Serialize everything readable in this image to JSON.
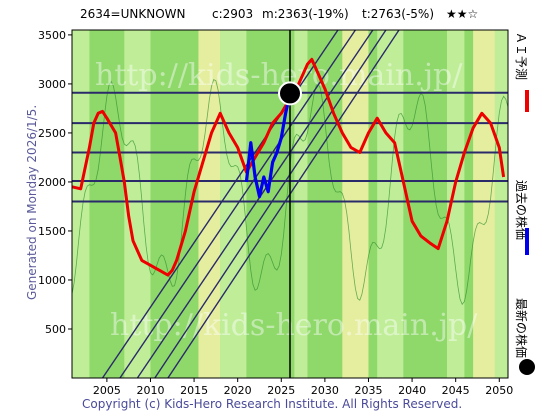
{
  "header": {
    "code": "2634=UNKNOWN",
    "current": "c:2903",
    "model": "m:2363(-19%)",
    "target": "t:2763(-5%)",
    "stars": "★★☆"
  },
  "side_label": "Generated on Monday 2026/1/5.",
  "footer": "Copyright (c) Kids-Hero Research Institute. All Rights Reserved.",
  "watermark": "http://kids-hero.main.jp/",
  "legend": {
    "ai": "ＡＩ予測",
    "past": "過去の株価",
    "latest": "最新の株価"
  },
  "colors": {
    "ai": "#ee0000",
    "past": "#0000ee",
    "latest": "#000000",
    "band_lines": "#2a2a6a",
    "bg_green": "#8fd86a",
    "bg_light": "#c9f2a0",
    "bg_yellow": "#f5f2a8"
  },
  "chart_data": {
    "type": "line",
    "xlim": [
      2001,
      2051
    ],
    "ylim": [
      0,
      3550
    ],
    "x_ticks": [
      2005,
      2010,
      2015,
      2020,
      2025,
      2030,
      2035,
      2040,
      2045,
      2050
    ],
    "y_ticks": [
      500,
      1000,
      1500,
      2000,
      2500,
      3000,
      3500
    ],
    "horizontal_levels": [
      1800,
      2010,
      2300,
      2600,
      2910
    ],
    "latest_point": {
      "x": 2026.0,
      "y": 2903
    },
    "current_date_x": 2026.0,
    "series": [
      {
        "name": "ＡＩ予測",
        "x": [
          2001,
          2002,
          2003,
          2003.5,
          2004,
          2004.5,
          2005,
          2006,
          2006.5,
          2007,
          2007.5,
          2008,
          2009,
          2010,
          2011,
          2012,
          2012.5,
          2013,
          2014,
          2015,
          2016,
          2017,
          2017.5,
          2018,
          2019,
          2020,
          2021,
          2022,
          2023,
          2024,
          2025,
          2026,
          2027,
          2028,
          2028.5,
          2029,
          2030,
          2031,
          2032,
          2033,
          2034,
          2035,
          2036,
          2037,
          2038,
          2039,
          2040,
          2041,
          2042,
          2043,
          2044,
          2045,
          2046,
          2047,
          2048,
          2049,
          2050,
          2050.5
        ],
        "values": [
          1950,
          1930,
          2350,
          2600,
          2700,
          2720,
          2650,
          2500,
          2250,
          2000,
          1650,
          1400,
          1200,
          1150,
          1100,
          1050,
          1100,
          1200,
          1500,
          1900,
          2200,
          2500,
          2600,
          2700,
          2500,
          2350,
          2100,
          2250,
          2400,
          2600,
          2700,
          2850,
          3000,
          3200,
          3250,
          3150,
          2950,
          2700,
          2500,
          2350,
          2300,
          2500,
          2650,
          2500,
          2400,
          2000,
          1600,
          1450,
          1380,
          1320,
          1600,
          2000,
          2300,
          2550,
          2700,
          2600,
          2350,
          2050
        ]
      },
      {
        "name": "過去の株価",
        "x": [
          2021,
          2021.5,
          2022,
          2022.5,
          2023,
          2023.5,
          2024,
          2024.5,
          2025,
          2025.5,
          2026
        ],
        "values": [
          2000,
          2400,
          2050,
          1850,
          2050,
          1900,
          2200,
          2300,
          2450,
          2700,
          2903
        ]
      }
    ],
    "channel_lines": [
      {
        "from": [
          2004.5,
          0
        ],
        "to": [
          2031.5,
          3550
        ]
      },
      {
        "from": [
          2006.5,
          0
        ],
        "to": [
          2033.5,
          3550
        ]
      },
      {
        "from": [
          2008.5,
          0
        ],
        "to": [
          2035.5,
          3550
        ]
      },
      {
        "from": [
          2010.5,
          0
        ],
        "to": [
          2037.0,
          3550
        ]
      },
      {
        "from": [
          2012.0,
          0
        ],
        "to": [
          2038.5,
          3550
        ]
      }
    ]
  }
}
